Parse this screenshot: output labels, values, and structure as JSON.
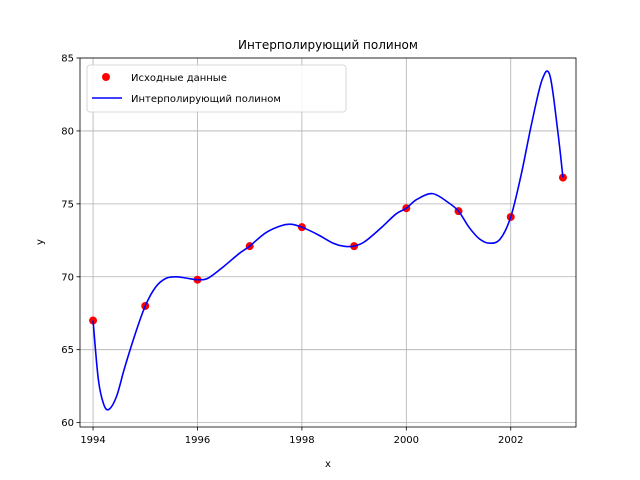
{
  "chart_data": {
    "type": "scatter",
    "title": "Интерполирующий полином",
    "xlabel": "x",
    "ylabel": "y",
    "xlim": [
      1993.75,
      2003.25
    ],
    "ylim": [
      59.7,
      85
    ],
    "xticks": [
      1994,
      1996,
      1998,
      2000,
      2002
    ],
    "yticks": [
      60,
      65,
      70,
      75,
      80,
      85
    ],
    "grid": true,
    "legend_position": "top-left",
    "series": [
      {
        "name": "Исходные данные",
        "kind": "points",
        "color": "#ff0000",
        "x": [
          1994,
          1995,
          1996,
          1997,
          1998,
          1999,
          2000,
          2001,
          2002,
          2003
        ],
        "y": [
          67.0,
          68.0,
          69.8,
          72.1,
          73.4,
          72.1,
          74.7,
          74.5,
          74.1,
          76.8
        ]
      },
      {
        "name": "Интерполирующий полином",
        "kind": "line",
        "color": "#0000ff",
        "x": [
          1994,
          1994.1,
          1994.2,
          1994.3,
          1994.45,
          1994.6,
          1994.8,
          1995,
          1995.2,
          1995.4,
          1995.6,
          1995.8,
          1996,
          1996.2,
          1996.5,
          1996.8,
          1997,
          1997.3,
          1997.6,
          1997.8,
          1998,
          1998.3,
          1998.6,
          1998.8,
          1999,
          1999.2,
          1999.5,
          1999.8,
          2000,
          2000.2,
          2000.5,
          2000.8,
          2001,
          2001.2,
          2001.4,
          2001.6,
          2001.8,
          2002,
          2002.2,
          2002.4,
          2002.6,
          2002.75,
          2002.9,
          2003
        ],
        "y": [
          67.0,
          63.0,
          61.3,
          60.9,
          61.8,
          63.7,
          66.0,
          68.0,
          69.3,
          69.9,
          70.0,
          69.9,
          69.8,
          69.9,
          70.7,
          71.6,
          72.1,
          73.0,
          73.5,
          73.6,
          73.4,
          72.9,
          72.3,
          72.1,
          72.1,
          72.4,
          73.3,
          74.3,
          74.7,
          75.3,
          75.7,
          75.1,
          74.5,
          73.4,
          72.6,
          72.3,
          72.6,
          74.1,
          77.0,
          80.5,
          83.5,
          83.8,
          80.0,
          76.8
        ]
      }
    ]
  }
}
